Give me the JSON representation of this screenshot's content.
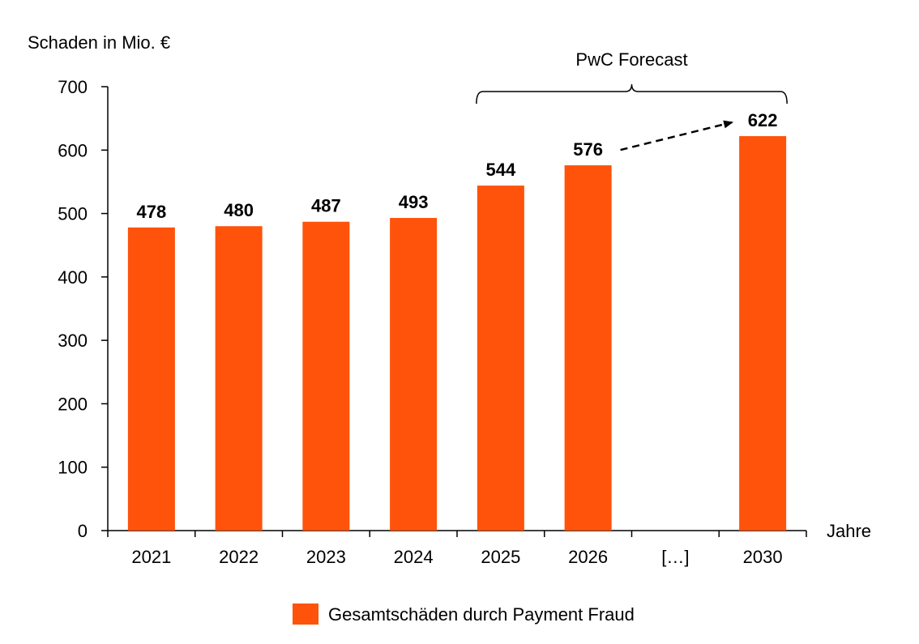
{
  "chart_data": {
    "type": "bar",
    "categories": [
      "2021",
      "2022",
      "2023",
      "2024",
      "2025",
      "2026",
      "[…]",
      "2030"
    ],
    "series": [
      {
        "name": "Gesamtschäden durch Payment Fraud",
        "values": [
          478,
          480,
          487,
          493,
          544,
          576,
          null,
          622
        ],
        "data_labels": [
          "478",
          "480",
          "487",
          "493",
          "544",
          "576",
          "",
          "622"
        ]
      }
    ],
    "ylabel": "Schaden in Mio. €",
    "xlabel": "Jahre",
    "ylim": [
      0,
      700
    ],
    "yticks": [
      "0",
      "100",
      "200",
      "300",
      "400",
      "500",
      "600",
      "700"
    ],
    "grid": false,
    "legend_position": "bottom-center",
    "bar_color": "#FF520A",
    "annotations": {
      "forecast_label": "PwC Forecast",
      "forecast_span": [
        "2025",
        "2030"
      ],
      "arrow": {
        "from": "2026",
        "to": "2030",
        "style": "dashed"
      }
    }
  }
}
